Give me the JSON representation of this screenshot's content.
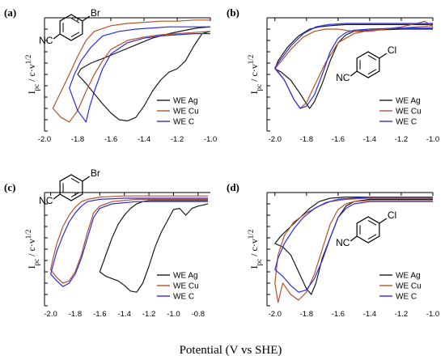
{
  "colors": {
    "ag": "#1a1a1a",
    "cu": "#b5512b",
    "c": "#2d2be0",
    "axis": "#000000"
  },
  "x_axis_label": "Potential (V vs SHE)",
  "chart_data": [
    {
      "panel": "(a)",
      "type": "line",
      "ylabel": "I",
      "ylabel_sub": "pc",
      "ylabel_rest": " / c·v",
      "ylabel_sup": "1/2",
      "xlim": [
        -2.0,
        -1.0
      ],
      "xticks": [
        "-2.0",
        "-1.8",
        "-1.6",
        "-1.4",
        "-1.2",
        "-1.0"
      ],
      "xtick_values": [
        -2.0,
        -1.8,
        -1.6,
        -1.4,
        -1.2,
        -1.0
      ],
      "ylim": [
        0,
        1
      ],
      "molecule": {
        "substituent": "Br",
        "group": "NC"
      },
      "legend": [
        "WE Ag",
        "WE Cu",
        "WE C"
      ],
      "series": [
        {
          "name": "WE Ag",
          "color_key": "ag",
          "x": [
            -1.0,
            -1.05,
            -1.1,
            -1.15,
            -1.2,
            -1.25,
            -1.3,
            -1.35,
            -1.4,
            -1.45,
            -1.5,
            -1.55,
            -1.6,
            -1.65,
            -1.7,
            -1.75,
            -1.8,
            -1.78,
            -1.72,
            -1.65,
            -1.55,
            -1.45,
            -1.35,
            -1.25,
            -1.15,
            -1.08,
            -1.0
          ],
          "y": [
            0.88,
            0.86,
            0.75,
            0.62,
            0.55,
            0.52,
            0.45,
            0.35,
            0.22,
            0.12,
            0.09,
            0.1,
            0.16,
            0.24,
            0.33,
            0.42,
            0.5,
            0.55,
            0.6,
            0.64,
            0.7,
            0.76,
            0.82,
            0.86,
            0.89,
            0.91,
            0.92
          ]
        },
        {
          "name": "WE Cu",
          "color_key": "cu",
          "x": [
            -1.0,
            -1.1,
            -1.2,
            -1.3,
            -1.4,
            -1.5,
            -1.6,
            -1.65,
            -1.7,
            -1.75,
            -1.8,
            -1.85,
            -1.9,
            -1.95,
            -1.9,
            -1.85,
            -1.8,
            -1.75,
            -1.7,
            -1.6,
            -1.5,
            -1.4,
            -1.3,
            -1.2,
            -1.1,
            -1.0
          ],
          "y": [
            0.88,
            0.87,
            0.86,
            0.85,
            0.83,
            0.8,
            0.72,
            0.62,
            0.5,
            0.35,
            0.18,
            0.08,
            0.12,
            0.2,
            0.35,
            0.5,
            0.66,
            0.8,
            0.88,
            0.93,
            0.95,
            0.96,
            0.97,
            0.97,
            0.98,
            0.98
          ]
        },
        {
          "name": "WE C",
          "color_key": "c",
          "x": [
            -1.0,
            -1.1,
            -1.2,
            -1.3,
            -1.4,
            -1.5,
            -1.6,
            -1.65,
            -1.7,
            -1.73,
            -1.75,
            -1.8,
            -1.85,
            -1.82,
            -1.78,
            -1.72,
            -1.65,
            -1.55,
            -1.45,
            -1.35,
            -1.25,
            -1.15,
            -1.0
          ],
          "y": [
            0.86,
            0.86,
            0.85,
            0.84,
            0.82,
            0.78,
            0.68,
            0.55,
            0.35,
            0.2,
            0.08,
            0.18,
            0.38,
            0.5,
            0.62,
            0.74,
            0.84,
            0.88,
            0.9,
            0.91,
            0.92,
            0.92,
            0.92
          ]
        }
      ]
    },
    {
      "panel": "(b)",
      "type": "line",
      "ylabel": "I",
      "ylabel_sub": "pc",
      "ylabel_rest": " / c·v",
      "ylabel_sup": "1/2",
      "xlim": [
        -2.05,
        -1.0
      ],
      "xticks": [
        "-2.0",
        "-1.8",
        "-1.6",
        "-1.4",
        "-1.2",
        "-1.0"
      ],
      "xtick_values": [
        -2.0,
        -1.8,
        -1.6,
        -1.4,
        -1.2,
        -1.0
      ],
      "ylim": [
        0,
        1
      ],
      "molecule": {
        "substituent": "Cl",
        "group": "NC"
      },
      "legend": [
        "WE Ag",
        "WE Cu",
        "WE C"
      ],
      "series": [
        {
          "name": "WE Ag",
          "color_key": "ag",
          "x": [
            -1.0,
            -1.2,
            -1.4,
            -1.5,
            -1.55,
            -1.6,
            -1.65,
            -1.7,
            -1.75,
            -1.78,
            -1.8,
            -1.84,
            -1.9,
            -1.96,
            -2.0,
            -1.98,
            -1.92,
            -1.85,
            -1.78,
            -1.72,
            -1.65,
            -1.55,
            -1.4,
            -1.2,
            -1.0
          ],
          "y": [
            0.9,
            0.9,
            0.89,
            0.88,
            0.85,
            0.78,
            0.62,
            0.42,
            0.26,
            0.2,
            0.24,
            0.33,
            0.45,
            0.52,
            0.55,
            0.62,
            0.74,
            0.84,
            0.9,
            0.92,
            0.93,
            0.94,
            0.94,
            0.94,
            0.94
          ]
        },
        {
          "name": "WE Cu",
          "color_key": "cu",
          "x": [
            -1.0,
            -1.05,
            -1.1,
            -1.2,
            -1.3,
            -1.4,
            -1.5,
            -1.6,
            -1.68,
            -1.75,
            -1.8,
            -1.84,
            -1.88,
            -1.94,
            -2.0,
            -1.97,
            -1.9,
            -1.82,
            -1.75,
            -1.68,
            -1.6,
            -1.5,
            -1.4,
            -1.3,
            -1.2,
            -1.1,
            -1.0
          ],
          "y": [
            0.92,
            0.97,
            0.95,
            0.92,
            0.9,
            0.89,
            0.86,
            0.78,
            0.6,
            0.4,
            0.25,
            0.2,
            0.28,
            0.45,
            0.55,
            0.6,
            0.72,
            0.83,
            0.88,
            0.9,
            0.9,
            0.88,
            0.88,
            0.9,
            0.91,
            0.92,
            0.93
          ]
        },
        {
          "name": "WE C",
          "color_key": "c",
          "x": [
            -1.0,
            -1.2,
            -1.4,
            -1.5,
            -1.55,
            -1.6,
            -1.65,
            -1.7,
            -1.75,
            -1.8,
            -1.84,
            -1.88,
            -1.94,
            -2.0,
            -1.97,
            -1.9,
            -1.82,
            -1.74,
            -1.66,
            -1.55,
            -1.4,
            -1.2,
            -1.0
          ],
          "y": [
            0.91,
            0.91,
            0.9,
            0.89,
            0.87,
            0.82,
            0.7,
            0.5,
            0.32,
            0.22,
            0.2,
            0.28,
            0.45,
            0.56,
            0.62,
            0.75,
            0.86,
            0.92,
            0.94,
            0.95,
            0.95,
            0.95,
            0.95
          ]
        }
      ]
    },
    {
      "panel": "(c)",
      "type": "line",
      "ylabel": "I",
      "ylabel_sub": "pc",
      "ylabel_rest": " / c·v",
      "ylabel_sup": "1/2",
      "xlim": [
        -2.05,
        -0.7
      ],
      "xticks": [
        "-2.0",
        "-1.8",
        "-1.6",
        "-1.4",
        "-1.2",
        "-1.0",
        "-0.8"
      ],
      "xtick_values": [
        -2.0,
        -1.8,
        -1.6,
        -1.4,
        -1.2,
        -1.0,
        -0.8
      ],
      "ylim": [
        0,
        1
      ],
      "molecule": {
        "substituent": "Br",
        "group": "NC"
      },
      "legend": [
        "WE Ag",
        "WE Cu",
        "WE C"
      ],
      "series": [
        {
          "name": "WE Ag",
          "color_key": "ag",
          "x": [
            -0.72,
            -0.8,
            -0.85,
            -0.9,
            -0.95,
            -1.0,
            -1.05,
            -1.1,
            -1.15,
            -1.2,
            -1.25,
            -1.3,
            -1.35,
            -1.4,
            -1.45,
            -1.5,
            -1.55,
            -1.6,
            -1.55,
            -1.5,
            -1.45,
            -1.4,
            -1.35,
            -1.3,
            -1.25,
            -1.2,
            -1.0,
            -0.8,
            -0.72
          ],
          "y": [
            0.9,
            0.88,
            0.86,
            0.8,
            0.86,
            0.85,
            0.75,
            0.65,
            0.52,
            0.35,
            0.2,
            0.12,
            0.13,
            0.18,
            0.22,
            0.24,
            0.26,
            0.3,
            0.45,
            0.6,
            0.72,
            0.8,
            0.86,
            0.9,
            0.92,
            0.93,
            0.93,
            0.93,
            0.93
          ]
        },
        {
          "name": "WE Cu",
          "color_key": "cu",
          "x": [
            -0.72,
            -1.0,
            -1.3,
            -1.5,
            -1.6,
            -1.65,
            -1.7,
            -1.75,
            -1.8,
            -1.85,
            -1.9,
            -1.95,
            -2.0,
            -1.98,
            -1.95,
            -1.9,
            -1.85,
            -1.8,
            -1.75,
            -1.7,
            -1.6,
            -1.4,
            -1.0,
            -0.72
          ],
          "y": [
            0.94,
            0.94,
            0.94,
            0.92,
            0.88,
            0.82,
            0.65,
            0.45,
            0.3,
            0.22,
            0.2,
            0.25,
            0.32,
            0.42,
            0.55,
            0.7,
            0.8,
            0.87,
            0.92,
            0.94,
            0.96,
            0.97,
            0.97,
            0.97
          ]
        },
        {
          "name": "WE C",
          "color_key": "c",
          "x": [
            -0.72,
            -1.0,
            -1.3,
            -1.5,
            -1.6,
            -1.65,
            -1.7,
            -1.75,
            -1.8,
            -1.85,
            -1.9,
            -1.95,
            -2.0,
            -1.98,
            -1.95,
            -1.9,
            -1.85,
            -1.8,
            -1.75,
            -1.7,
            -1.6,
            -1.4,
            -1.0,
            -0.72
          ],
          "y": [
            0.92,
            0.92,
            0.92,
            0.9,
            0.86,
            0.78,
            0.6,
            0.42,
            0.28,
            0.2,
            0.17,
            0.22,
            0.28,
            0.36,
            0.48,
            0.62,
            0.74,
            0.82,
            0.88,
            0.92,
            0.94,
            0.95,
            0.95,
            0.95
          ]
        }
      ]
    },
    {
      "panel": "(d)",
      "type": "line",
      "ylabel": "I",
      "ylabel_sub": "pc",
      "ylabel_rest": " / c·v",
      "ylabel_sup": "1/2",
      "xlim": [
        -2.05,
        -1.0
      ],
      "xticks": [
        "-2.0",
        "-1.8",
        "-1.6",
        "-1.4",
        "-1.2",
        "-1.0"
      ],
      "xtick_values": [
        -2.0,
        -1.8,
        -1.6,
        -1.4,
        -1.2,
        -1.0
      ],
      "ylim": [
        0,
        1
      ],
      "molecule": {
        "substituent": "Cl",
        "group": "NC"
      },
      "legend": [
        "WE Ag",
        "WE Cu",
        "WE C"
      ],
      "series": [
        {
          "name": "WE Ag",
          "color_key": "ag",
          "x": [
            -1.0,
            -1.2,
            -1.4,
            -1.5,
            -1.55,
            -1.6,
            -1.65,
            -1.7,
            -1.74,
            -1.77,
            -1.8,
            -1.85,
            -1.9,
            -1.95,
            -2.0,
            -1.96,
            -1.9,
            -1.84,
            -1.78,
            -1.72,
            -1.65,
            -1.55,
            -1.4,
            -1.2,
            -1.0
          ],
          "y": [
            0.94,
            0.94,
            0.94,
            0.92,
            0.88,
            0.78,
            0.6,
            0.42,
            0.2,
            0.1,
            0.15,
            0.3,
            0.45,
            0.52,
            0.55,
            0.62,
            0.7,
            0.78,
            0.86,
            0.92,
            0.95,
            0.96,
            0.96,
            0.96,
            0.96
          ]
        },
        {
          "name": "WE Cu",
          "color_key": "cu",
          "x": [
            -1.0,
            -1.2,
            -1.4,
            -1.5,
            -1.55,
            -1.6,
            -1.65,
            -1.7,
            -1.75,
            -1.8,
            -1.85,
            -1.9,
            -1.95,
            -1.98,
            -2.0,
            -1.98,
            -1.94,
            -1.88,
            -1.8,
            -1.72,
            -1.65,
            -1.55,
            -1.4,
            -1.2,
            -1.0
          ],
          "y": [
            0.93,
            0.93,
            0.93,
            0.92,
            0.9,
            0.85,
            0.72,
            0.5,
            0.28,
            0.12,
            0.05,
            0.1,
            0.2,
            0.03,
            0.2,
            0.45,
            0.62,
            0.74,
            0.82,
            0.88,
            0.92,
            0.94,
            0.95,
            0.95,
            0.95
          ]
        },
        {
          "name": "WE C",
          "color_key": "c",
          "x": [
            -1.0,
            -1.2,
            -1.4,
            -1.5,
            -1.55,
            -1.6,
            -1.65,
            -1.7,
            -1.75,
            -1.8,
            -1.85,
            -1.9,
            -1.95,
            -2.0,
            -1.98,
            -1.94,
            -1.88,
            -1.82,
            -1.75,
            -1.68,
            -1.6,
            -1.5,
            -1.4,
            -1.2,
            -1.0
          ],
          "y": [
            0.92,
            0.92,
            0.92,
            0.9,
            0.86,
            0.78,
            0.6,
            0.4,
            0.24,
            0.14,
            0.12,
            0.18,
            0.26,
            0.32,
            0.42,
            0.55,
            0.68,
            0.78,
            0.86,
            0.91,
            0.94,
            0.95,
            0.96,
            0.96,
            0.96
          ]
        }
      ]
    }
  ]
}
